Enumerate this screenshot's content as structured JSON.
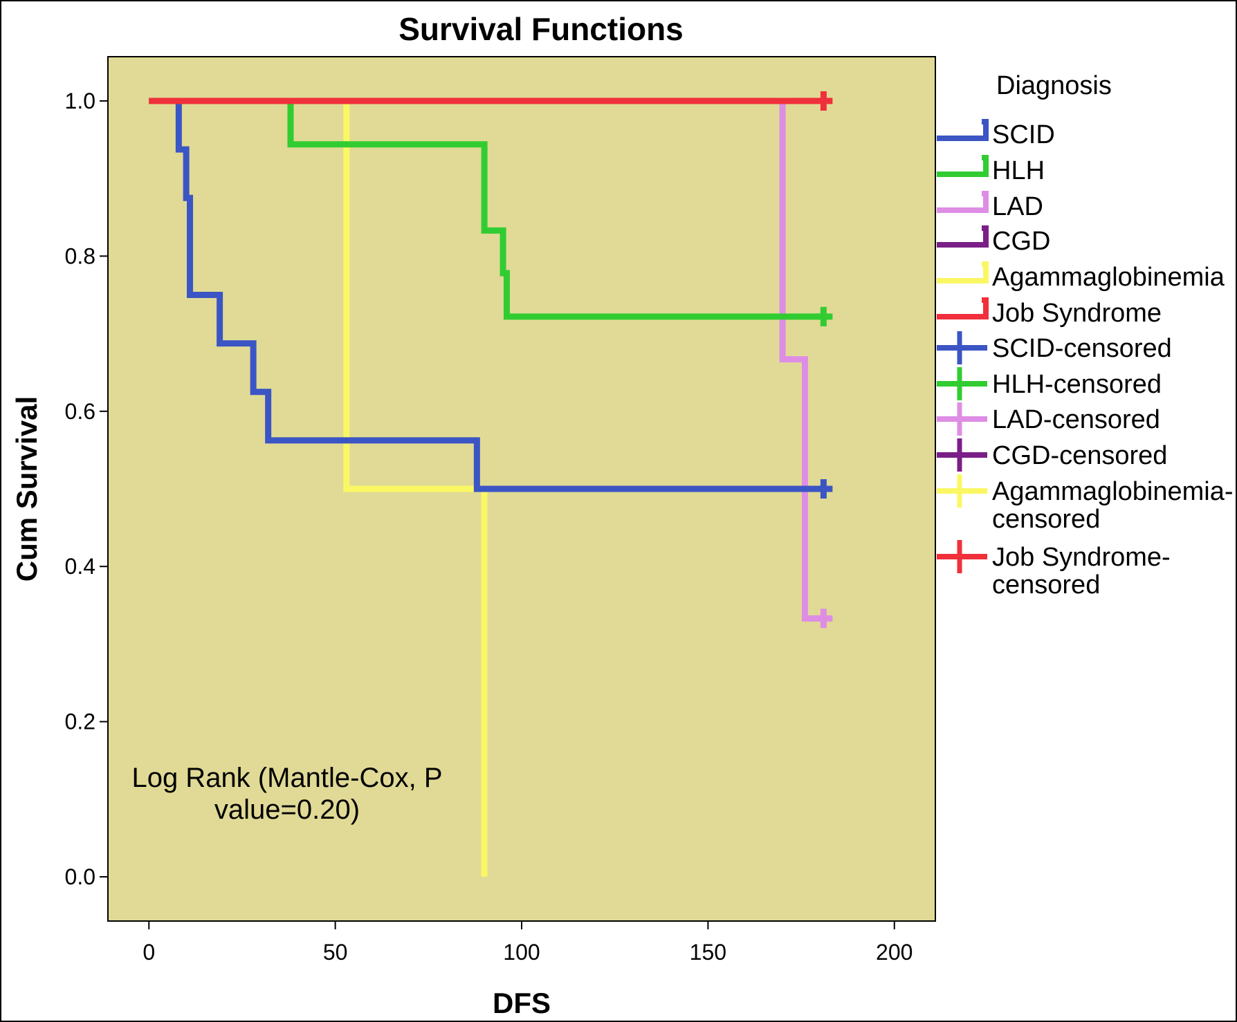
{
  "chart_data": {
    "type": "line",
    "subtype": "kaplan-meier",
    "title": "Survival Functions",
    "xlabel": "DFS",
    "ylabel": "Cum Survival",
    "xlim": [
      -11,
      211
    ],
    "ylim": [
      -0.057,
      1.057
    ],
    "xticks": [
      0,
      50,
      100,
      150,
      200
    ],
    "yticks": [
      0.0,
      0.2,
      0.4,
      0.6,
      0.8,
      1.0
    ],
    "xtick_labels": [
      "0",
      "50",
      "100",
      "150",
      "200"
    ],
    "ytick_labels": [
      "0.0",
      "0.2",
      "0.4",
      "0.6",
      "0.8",
      "1.0"
    ],
    "plot_background": "#e0da96",
    "legend": {
      "title": "Diagnosis",
      "placement": "right",
      "entries": [
        {
          "label": [
            "SCID"
          ],
          "color": "#3b55c4",
          "kind": "step"
        },
        {
          "label": [
            "HLH"
          ],
          "color": "#31cc31",
          "kind": "step"
        },
        {
          "label": [
            "LAD"
          ],
          "color": "#de8de5",
          "kind": "step"
        },
        {
          "label": [
            "CGD"
          ],
          "color": "#7a1f87",
          "kind": "step"
        },
        {
          "label": [
            "Agammaglobinemia"
          ],
          "color": "#faf764",
          "kind": "step"
        },
        {
          "label": [
            "Job Syndrome"
          ],
          "color": "#f0303a",
          "kind": "step"
        },
        {
          "label": [
            "SCID-censored"
          ],
          "color": "#3b55c4",
          "kind": "censor"
        },
        {
          "label": [
            "HLH-censored"
          ],
          "color": "#31cc31",
          "kind": "censor"
        },
        {
          "label": [
            "LAD-censored"
          ],
          "color": "#de8de5",
          "kind": "censor"
        },
        {
          "label": [
            "CGD-censored"
          ],
          "color": "#7a1f87",
          "kind": "censor"
        },
        {
          "label": [
            "Agammaglobinemia-",
            "censored"
          ],
          "color": "#faf764",
          "kind": "censor"
        },
        {
          "label": [
            "Job Syndrome-",
            "censored"
          ],
          "color": "#f0303a",
          "kind": "censor"
        }
      ]
    },
    "annotation": [
      "Log Rank (Mantle-Cox, P",
      "value=0.20)"
    ],
    "series": [
      {
        "name": "SCID",
        "color": "#3b55c4",
        "steps": [
          [
            0,
            1.0
          ],
          [
            8,
            0.9375
          ],
          [
            10,
            0.875
          ],
          [
            11,
            0.75
          ],
          [
            19,
            0.6875
          ],
          [
            28,
            0.625
          ],
          [
            32,
            0.5625
          ],
          [
            88,
            0.5
          ],
          [
            181,
            0.5
          ]
        ],
        "censored": [
          [
            181,
            0.5
          ]
        ]
      },
      {
        "name": "HLH",
        "color": "#31cc31",
        "steps": [
          [
            0,
            1.0
          ],
          [
            38,
            0.944
          ],
          [
            90,
            0.833
          ],
          [
            95,
            0.778
          ],
          [
            96,
            0.722
          ],
          [
            181,
            0.722
          ]
        ],
        "censored": [
          [
            181,
            0.722
          ]
        ]
      },
      {
        "name": "LAD",
        "color": "#de8de5",
        "steps": [
          [
            0,
            1.0
          ],
          [
            170,
            0.667
          ],
          [
            176,
            0.333
          ],
          [
            181,
            0.333
          ]
        ],
        "censored": [
          [
            181,
            0.333
          ]
        ]
      },
      {
        "name": "Agammaglobinemia",
        "color": "#faf764",
        "steps": [
          [
            0,
            1.0
          ],
          [
            53,
            0.5
          ],
          [
            90,
            0.0
          ]
        ],
        "censored": []
      },
      {
        "name": "Job Syndrome",
        "color": "#f0303a",
        "steps": [
          [
            0,
            1.0
          ],
          [
            181,
            1.0
          ]
        ],
        "censored": [
          [
            181,
            1.0
          ]
        ]
      }
    ]
  }
}
